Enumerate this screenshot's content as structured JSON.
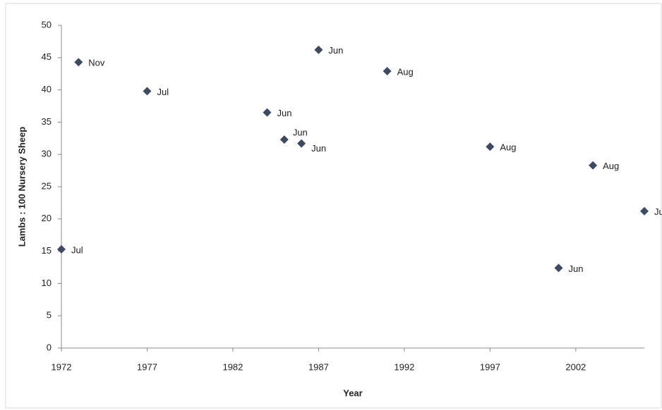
{
  "chart_data": {
    "type": "scatter",
    "x_label": "Year",
    "y_label": "Lambs : 100 Nursery Sheep",
    "x": [
      1972,
      1973,
      1977,
      1984,
      1985,
      1986,
      1987,
      1991,
      1997,
      2001,
      2003,
      2006
    ],
    "values": [
      15.3,
      44.3,
      39.8,
      36.5,
      32.3,
      31.7,
      46.2,
      42.9,
      31.2,
      12.4,
      28.3,
      21.2
    ],
    "labels": [
      "Jul",
      "Nov",
      "Jul",
      "Jun",
      "Jun",
      "Jun",
      "Jun",
      "Aug",
      "Aug",
      "Jun",
      "Aug",
      "Jul"
    ],
    "color": "#3d4a63",
    "xlim": [
      1972,
      2006
    ],
    "xticks": [
      1972,
      1977,
      1982,
      1987,
      1992,
      1997,
      2002
    ],
    "ylim": [
      0,
      50
    ],
    "yticks": [
      0,
      5,
      10,
      15,
      20,
      25,
      30,
      35,
      40,
      45,
      50
    ],
    "grid": false
  }
}
